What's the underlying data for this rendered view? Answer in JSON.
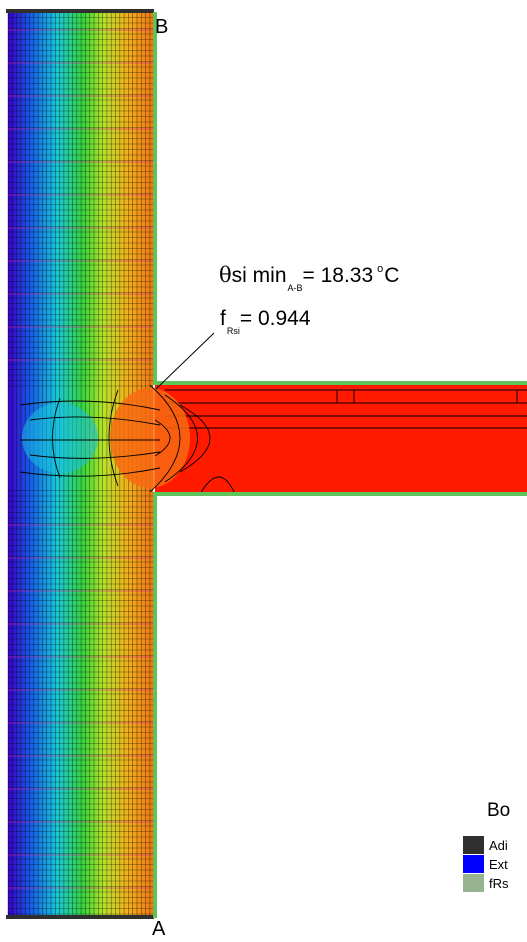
{
  "points": {
    "top": "B",
    "bottom": "A"
  },
  "annotation": {
    "theta_symbol": "θ",
    "theta_label": "si min",
    "theta_sub": "A-B",
    "theta_eq": "= 18.33",
    "theta_deg": "o",
    "theta_unit": "C",
    "f_label": "f",
    "f_sub": "Rsi",
    "f_eq": "= 0.944"
  },
  "legend": {
    "title": "Bo",
    "items": [
      {
        "label": "Adi",
        "color": "#2f2f2f"
      },
      {
        "label": "Ext",
        "color": "#0000ff"
      },
      {
        "label": "fRs",
        "color": "#95b48f"
      }
    ]
  },
  "colors": {
    "wall_gradient": [
      "#3a00c8",
      "#1560e8",
      "#19c8d8",
      "#38d63a",
      "#b8e22a",
      "#f0b21c",
      "#f27814"
    ],
    "slab": "#ff1a00",
    "boundary_adiabatic": "#2f2f2f",
    "boundary_frsi": "#5ec45a",
    "mesh": "#000000"
  }
}
